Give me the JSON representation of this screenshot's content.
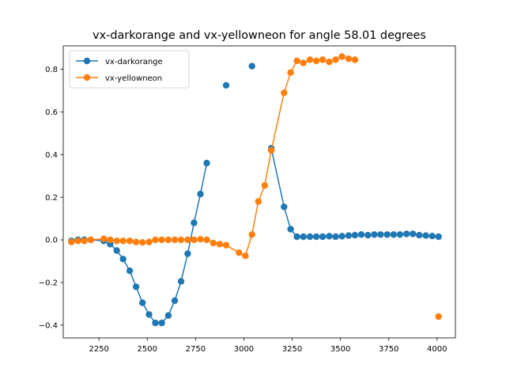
{
  "chart_data": {
    "type": "line",
    "title": "vx-darkorange and vx-yellowneon for angle 58.01 degrees",
    "xlabel": "",
    "ylabel": "",
    "xlim": [
      2065,
      4095
    ],
    "ylim": [
      -0.46,
      0.91
    ],
    "x_ticks": [
      2250,
      2500,
      2750,
      3000,
      3250,
      3500,
      3750,
      4000
    ],
    "y_ticks": [
      -0.4,
      -0.2,
      0.0,
      0.2,
      0.4,
      0.6,
      0.8
    ],
    "y_tick_labels": [
      "−0.4",
      "−0.2",
      "0.0",
      "0.2",
      "0.4",
      "0.6",
      "0.8"
    ],
    "grid": false,
    "legend_position": "upper-left",
    "series": [
      {
        "name": "vx-darkorange",
        "color": "#1f77b4",
        "marker": "circle",
        "segments": [
          [
            [
              2107,
              -0.005
            ],
            [
              2141,
              0.0
            ],
            [
              2174,
              0.0
            ],
            [
              2208,
              0.0
            ],
            [
              2275,
              -0.005
            ],
            [
              2308,
              -0.02
            ],
            [
              2342,
              -0.05
            ],
            [
              2375,
              -0.09
            ],
            [
              2409,
              -0.145
            ],
            [
              2442,
              -0.22
            ],
            [
              2475,
              -0.295
            ],
            [
              2509,
              -0.35
            ],
            [
              2542,
              -0.39
            ],
            [
              2575,
              -0.39
            ],
            [
              2609,
              -0.355
            ],
            [
              2642,
              -0.285
            ],
            [
              2675,
              -0.195
            ],
            [
              2709,
              -0.065
            ],
            [
              2742,
              0.08
            ],
            [
              2775,
              0.215
            ],
            [
              2808,
              0.36
            ]
          ],
          [
            [
              2908,
              0.725
            ]
          ],
          [
            [
              3042,
              0.815
            ]
          ],
          [
            [
              3142,
              0.43
            ],
            [
              3208,
              0.155
            ],
            [
              3242,
              0.05
            ],
            [
              3275,
              0.015
            ],
            [
              3308,
              0.015
            ],
            [
              3342,
              0.015
            ],
            [
              3375,
              0.015
            ],
            [
              3408,
              0.015
            ],
            [
              3442,
              0.017
            ],
            [
              3475,
              0.015
            ],
            [
              3508,
              0.017
            ],
            [
              3542,
              0.02
            ],
            [
              3575,
              0.022
            ],
            [
              3608,
              0.025
            ],
            [
              3642,
              0.022
            ],
            [
              3675,
              0.025
            ],
            [
              3708,
              0.025
            ],
            [
              3742,
              0.025
            ],
            [
              3775,
              0.025
            ],
            [
              3808,
              0.025
            ],
            [
              3842,
              0.028
            ],
            [
              3875,
              0.028
            ],
            [
              3908,
              0.022
            ],
            [
              3942,
              0.02
            ],
            [
              3975,
              0.018
            ],
            [
              4008,
              0.015
            ]
          ]
        ]
      },
      {
        "name": "vx-yellowneon",
        "color": "#ff7f0e",
        "marker": "circle",
        "segments": [
          [
            [
              2107,
              -0.01
            ],
            [
              2141,
              -0.005
            ],
            [
              2174,
              -0.005
            ],
            [
              2208,
              0.0
            ],
            [
              2275,
              0.005
            ],
            [
              2308,
              0.0
            ],
            [
              2342,
              -0.005
            ],
            [
              2375,
              -0.005
            ],
            [
              2409,
              -0.005
            ],
            [
              2442,
              -0.01
            ],
            [
              2475,
              -0.012
            ],
            [
              2509,
              -0.01
            ],
            [
              2542,
              0.0
            ],
            [
              2575,
              0.0
            ],
            [
              2609,
              0.0
            ],
            [
              2642,
              0.0
            ],
            [
              2675,
              0.0
            ],
            [
              2709,
              0.0
            ],
            [
              2742,
              0.0
            ],
            [
              2775,
              0.003
            ],
            [
              2808,
              0.0
            ],
            [
              2842,
              -0.015
            ],
            [
              2875,
              -0.02
            ],
            [
              2908,
              -0.025
            ],
            [
              2975,
              -0.06
            ],
            [
              3008,
              -0.075
            ],
            [
              3042,
              0.025
            ],
            [
              3075,
              0.18
            ],
            [
              3108,
              0.255
            ],
            [
              3142,
              0.42
            ],
            [
              3208,
              0.69
            ],
            [
              3242,
              0.785
            ],
            [
              3275,
              0.84
            ],
            [
              3308,
              0.83
            ],
            [
              3342,
              0.845
            ],
            [
              3375,
              0.84
            ],
            [
              3408,
              0.845
            ],
            [
              3442,
              0.835
            ],
            [
              3475,
              0.845
            ],
            [
              3508,
              0.86
            ],
            [
              3542,
              0.85
            ],
            [
              3575,
              0.845
            ]
          ],
          [
            [
              4008,
              -0.36
            ]
          ]
        ]
      }
    ]
  }
}
